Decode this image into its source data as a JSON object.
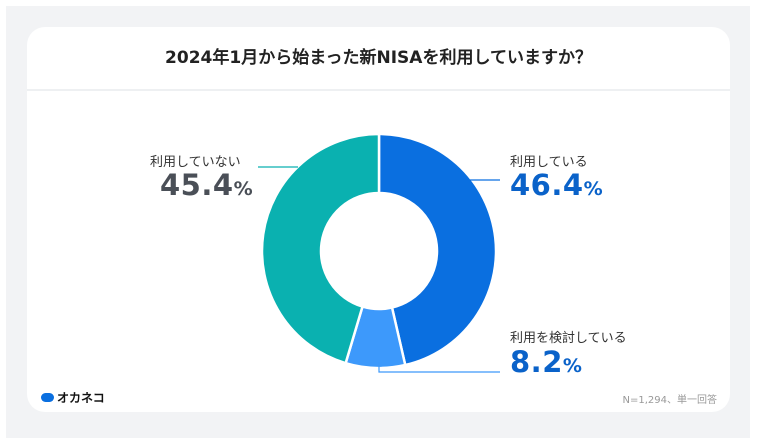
{
  "chart_data": {
    "type": "pie",
    "title": "2024年1月から始まった新NISAを利用していますか？",
    "slices": [
      {
        "label": "利用している",
        "value": 46.4,
        "color": "#0a6fe0"
      },
      {
        "label": "利用を検討している",
        "value": 8.2,
        "color": "#3d99fb"
      },
      {
        "label": "利用していない",
        "value": 45.4,
        "color": "#0ab1b0"
      }
    ],
    "unit": "%",
    "donut": true
  },
  "footer": {
    "brand": "オカネコ",
    "note": "N=1,294、単一回答"
  },
  "colors": {
    "background": "#f2f3f5",
    "card": "#ffffff",
    "neutral_value": "#4a4f57"
  }
}
